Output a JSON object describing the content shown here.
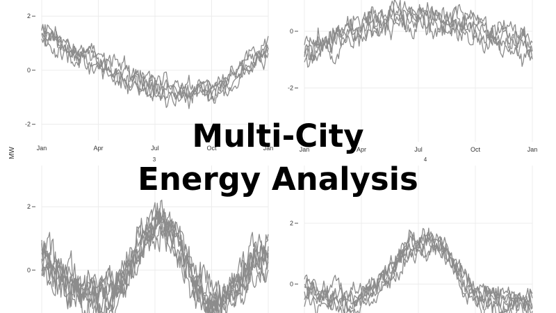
{
  "headline": {
    "line1": "Multi-City",
    "line2": "Energy Analysis"
  },
  "colors": {
    "line": "#8c8c8c",
    "grid": "#ececec",
    "text": "#333333"
  },
  "chart_data": {
    "type": "line",
    "ylabel": "MW",
    "months": [
      "Jan",
      "Apr",
      "Jul",
      "Oct",
      "Jan"
    ],
    "facets": [
      {
        "label": "",
        "yticks": [
          -2,
          0,
          2
        ],
        "ylim": [
          -2.6,
          2.7
        ],
        "series_count": 5,
        "profile": [
          1.5,
          1.2,
          1.0,
          0.8,
          0.7,
          0.5,
          0.35,
          0.2,
          0.1,
          -0.05,
          -0.2,
          -0.35,
          -0.5,
          -0.6,
          -0.65,
          -0.7,
          -0.75,
          -0.8,
          -0.8,
          -0.75,
          -0.7,
          -0.6,
          -0.45,
          -0.25,
          0.0,
          0.3,
          0.6,
          0.9
        ],
        "noise": 0.28
      },
      {
        "label": "",
        "yticks": [
          -2,
          0
        ],
        "ylim": [
          -3.9,
          1.2
        ],
        "series_count": 5,
        "profile": [
          -0.9,
          -0.6,
          -0.5,
          -0.4,
          -0.3,
          -0.2,
          -0.05,
          0.1,
          0.2,
          0.3,
          0.4,
          0.45,
          0.5,
          0.5,
          0.5,
          0.45,
          0.4,
          0.35,
          0.3,
          0.2,
          0.1,
          0.0,
          -0.1,
          -0.2,
          -0.3,
          -0.45,
          -0.6,
          -0.8
        ],
        "noise": 0.32
      },
      {
        "label": "3",
        "yticks": [
          0,
          2
        ],
        "ylim": [
          -1.4,
          3.3
        ],
        "series_count": 8,
        "profile": [
          0.3,
          0.1,
          -0.2,
          -0.4,
          -0.6,
          -0.7,
          -0.8,
          -0.8,
          -0.75,
          -0.6,
          -0.2,
          0.4,
          0.9,
          1.3,
          1.5,
          1.4,
          1.0,
          0.4,
          -0.2,
          -0.6,
          -0.9,
          -1.0,
          -0.9,
          -0.6,
          -0.2,
          0.2,
          0.4,
          0.5
        ],
        "noise": 0.42
      },
      {
        "label": "4",
        "yticks": [
          0,
          2
        ],
        "ylim": [
          -1.0,
          3.9
        ],
        "series_count": 6,
        "profile": [
          -0.2,
          -0.3,
          -0.4,
          -0.45,
          -0.5,
          -0.55,
          -0.5,
          -0.4,
          -0.2,
          0.1,
          0.4,
          0.8,
          1.1,
          1.3,
          1.4,
          1.35,
          1.2,
          0.9,
          0.5,
          0.1,
          -0.2,
          -0.4,
          -0.5,
          -0.55,
          -0.6,
          -0.6,
          -0.6,
          -0.55
        ],
        "noise": 0.28
      }
    ]
  }
}
